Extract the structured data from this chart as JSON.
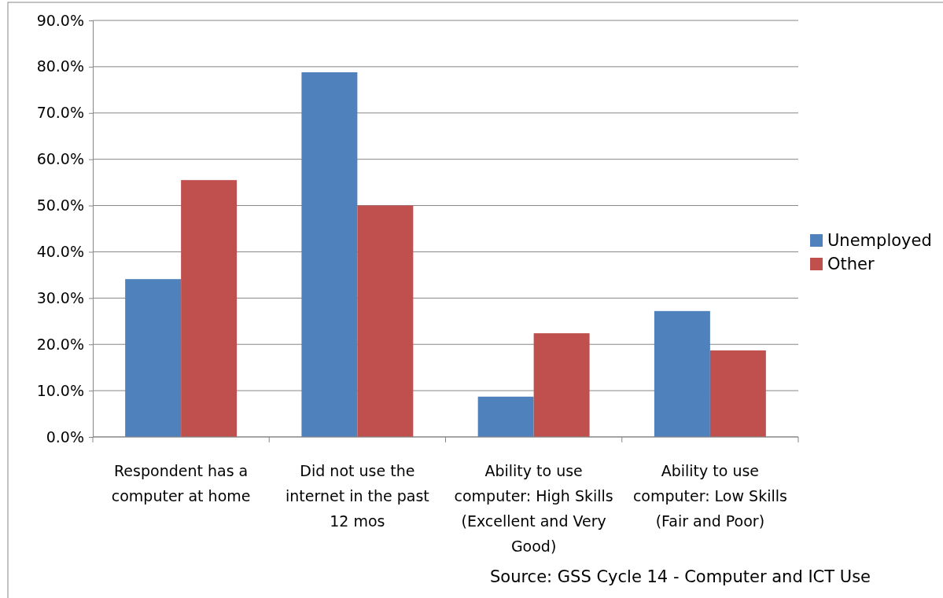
{
  "chart_data": {
    "type": "bar",
    "categories": [
      "Respondent has a computer at home",
      "Did not use the internet in the past 12 mos",
      "Ability to use computer: High Skills (Excellent and Very Good)",
      "Ability to use computer: Low Skills (Fair and Poor)"
    ],
    "series": [
      {
        "name": "Unemployed",
        "color": "#4f81bd",
        "values": [
          34.1,
          78.8,
          8.7,
          27.2
        ]
      },
      {
        "name": "Other",
        "color": "#c0504d",
        "values": [
          55.5,
          50.0,
          22.4,
          18.7
        ]
      }
    ],
    "ylim": [
      0,
      90
    ],
    "yticks": [
      {
        "value": 0,
        "label": "0.0%"
      },
      {
        "value": 10,
        "label": "10.0%"
      },
      {
        "value": 20,
        "label": "20.0%"
      },
      {
        "value": 30,
        "label": "30.0%"
      },
      {
        "value": 40,
        "label": "40.0%"
      },
      {
        "value": 50,
        "label": "50.0%"
      },
      {
        "value": 60,
        "label": "60.0%"
      },
      {
        "value": 70,
        "label": "70.0%"
      },
      {
        "value": 80,
        "label": "80.0%"
      },
      {
        "value": 90,
        "label": "90.0%"
      }
    ],
    "grid": "y",
    "legend": "right",
    "annotations": [
      "Source: GSS Cycle 14 - Computer and ICT Use"
    ]
  }
}
